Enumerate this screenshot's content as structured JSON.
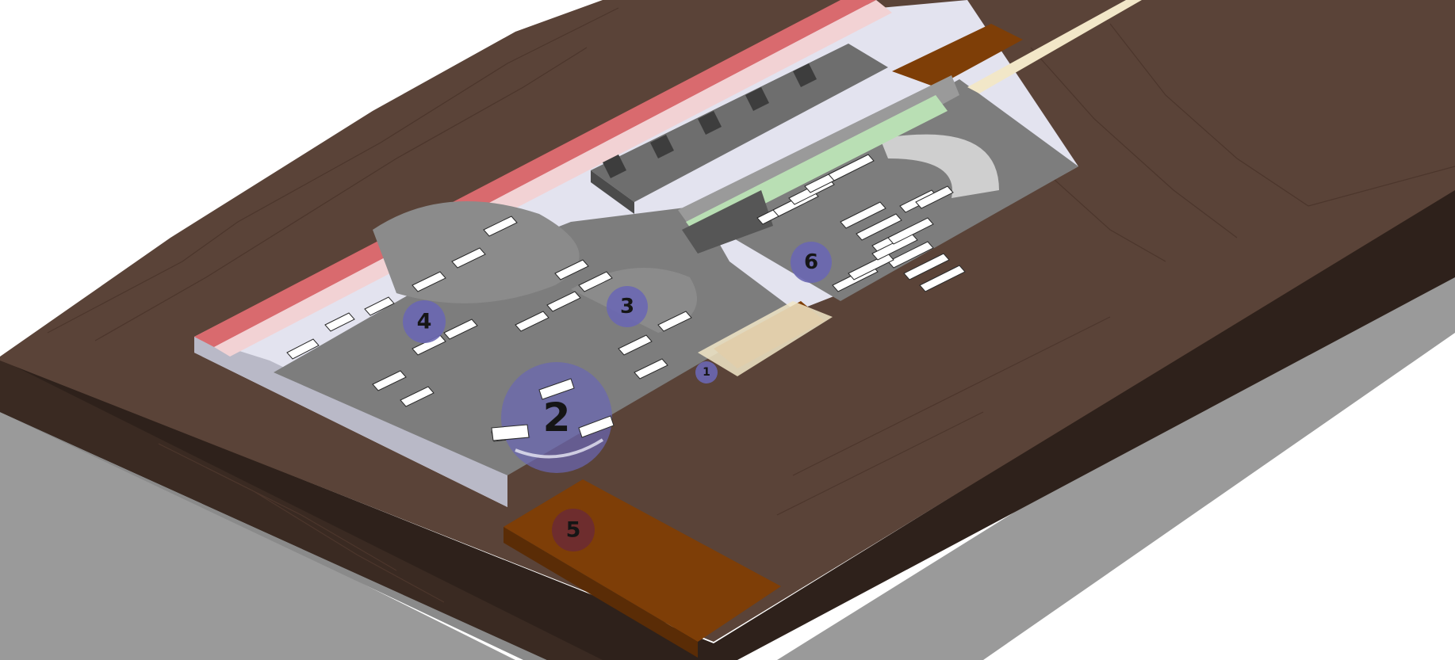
{
  "diagram": {
    "colors": {
      "background": "#ffffff",
      "terrain_top": "#5a4338",
      "terrain_side": "#2e211b",
      "ground_shadow": "#9a9a9a",
      "site_edge": "#e3e3ef",
      "pavement": "#7d7d7d",
      "red_wall": "#d96a6e",
      "pink_wall": "#f2d2d4",
      "orange_ramp": "#7e3e07",
      "buildings": "#6e6e6e",
      "greenery": "#b9dfb4",
      "marker_fill": "#6a67b3",
      "marker_dark_fill": "#6d2b33",
      "bus_body": "#ffffff"
    },
    "markers": [
      {
        "label": "1",
        "zone": "entrance-ramp"
      },
      {
        "label": "2",
        "zone": "bus-turning-area"
      },
      {
        "label": "3",
        "zone": "small-loop"
      },
      {
        "label": "4",
        "zone": "large-loop"
      },
      {
        "label": "5",
        "zone": "access-road"
      },
      {
        "label": "6",
        "zone": "bus-parking"
      }
    ]
  }
}
